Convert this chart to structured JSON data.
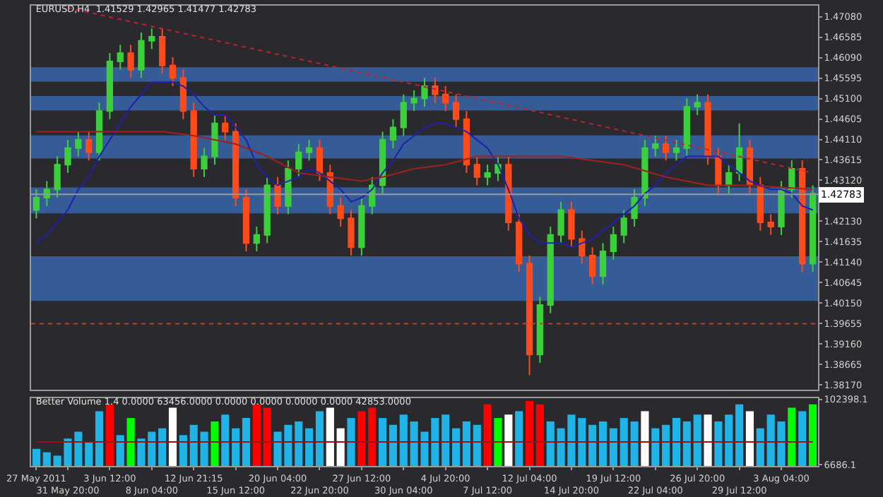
{
  "chart_data": [
    {
      "type": "candlestick",
      "title": "EURUSD,H4  1.41529 1.42965 1.41477 1.42783",
      "categories": [
        null,
        null,
        null,
        null,
        null,
        null,
        null,
        null,
        null,
        null,
        null,
        null,
        null,
        null,
        null,
        null,
        null,
        null,
        null,
        null,
        null,
        null,
        null,
        null,
        null,
        null,
        null,
        null,
        null,
        null,
        null,
        null,
        null,
        null,
        null,
        null,
        null,
        null,
        null,
        null,
        null,
        null,
        null,
        null,
        null,
        null,
        null,
        null,
        null,
        null,
        null,
        null,
        null,
        null,
        null,
        null,
        null,
        null,
        null,
        null,
        null,
        null,
        null,
        null,
        null,
        null,
        null,
        null,
        null,
        null,
        null,
        null,
        null,
        null,
        null
      ],
      "ohlc": [
        [
          1.424,
          1.429,
          1.422,
          1.427
        ],
        [
          1.427,
          1.431,
          1.425,
          1.429
        ],
        [
          1.429,
          1.437,
          1.427,
          1.435
        ],
        [
          1.435,
          1.441,
          1.433,
          1.439
        ],
        [
          1.439,
          1.443,
          1.437,
          1.441
        ],
        [
          1.441,
          1.443,
          1.436,
          1.438
        ],
        [
          1.438,
          1.45,
          1.436,
          1.448
        ],
        [
          1.448,
          1.462,
          1.446,
          1.46
        ],
        [
          1.46,
          1.464,
          1.458,
          1.462
        ],
        [
          1.462,
          1.464,
          1.456,
          1.458
        ],
        [
          1.458,
          1.467,
          1.456,
          1.465
        ],
        [
          1.465,
          1.468,
          1.463,
          1.466
        ],
        [
          1.466,
          1.468,
          1.457,
          1.459
        ],
        [
          1.459,
          1.461,
          1.454,
          1.456
        ],
        [
          1.456,
          1.458,
          1.446,
          1.448
        ],
        [
          1.448,
          1.45,
          1.432,
          1.434
        ],
        [
          1.434,
          1.439,
          1.432,
          1.437
        ],
        [
          1.437,
          1.447,
          1.435,
          1.445
        ],
        [
          1.445,
          1.447,
          1.441,
          1.443
        ],
        [
          1.443,
          1.445,
          1.425,
          1.427
        ],
        [
          1.427,
          1.429,
          1.414,
          1.416
        ],
        [
          1.416,
          1.42,
          1.414,
          1.418
        ],
        [
          1.418,
          1.432,
          1.416,
          1.43
        ],
        [
          1.43,
          1.432,
          1.423,
          1.425
        ],
        [
          1.425,
          1.436,
          1.423,
          1.434
        ],
        [
          1.434,
          1.44,
          1.432,
          1.438
        ],
        [
          1.438,
          1.441,
          1.436,
          1.439
        ],
        [
          1.439,
          1.441,
          1.431,
          1.433
        ],
        [
          1.433,
          1.435,
          1.423,
          1.425
        ],
        [
          1.425,
          1.427,
          1.42,
          1.422
        ],
        [
          1.422,
          1.424,
          1.413,
          1.415
        ],
        [
          1.415,
          1.427,
          1.413,
          1.425
        ],
        [
          1.425,
          1.432,
          1.423,
          1.43
        ],
        [
          1.43,
          1.443,
          1.428,
          1.441
        ],
        [
          1.441,
          1.446,
          1.439,
          1.444
        ],
        [
          1.444,
          1.452,
          1.442,
          1.45
        ],
        [
          1.45,
          1.453,
          1.448,
          1.451
        ],
        [
          1.451,
          1.456,
          1.449,
          1.454
        ],
        [
          1.454,
          1.456,
          1.45,
          1.452
        ],
        [
          1.452,
          1.454,
          1.448,
          1.45
        ],
        [
          1.45,
          1.452,
          1.444,
          1.446
        ],
        [
          1.446,
          1.448,
          1.433,
          1.435
        ],
        [
          1.435,
          1.437,
          1.43,
          1.432
        ],
        [
          1.432,
          1.435,
          1.43,
          1.433
        ],
        [
          1.433,
          1.437,
          1.431,
          1.435
        ],
        [
          1.435,
          1.437,
          1.419,
          1.421
        ],
        [
          1.421,
          1.423,
          1.409,
          1.411
        ],
        [
          1.411,
          1.413,
          1.384,
          1.389
        ],
        [
          1.389,
          1.403,
          1.387,
          1.401
        ],
        [
          1.401,
          1.42,
          1.399,
          1.418
        ],
        [
          1.418,
          1.426,
          1.416,
          1.424
        ],
        [
          1.424,
          1.426,
          1.415,
          1.417
        ],
        [
          1.417,
          1.419,
          1.411,
          1.413
        ],
        [
          1.413,
          1.415,
          1.406,
          1.408
        ],
        [
          1.408,
          1.416,
          1.406,
          1.414
        ],
        [
          1.414,
          1.42,
          1.412,
          1.418
        ],
        [
          1.418,
          1.424,
          1.416,
          1.422
        ],
        [
          1.422,
          1.429,
          1.42,
          1.427
        ],
        [
          1.427,
          1.441,
          1.425,
          1.439
        ],
        [
          1.439,
          1.442,
          1.437,
          1.44
        ],
        [
          1.44,
          1.442,
          1.436,
          1.438
        ],
        [
          1.438,
          1.441,
          1.436,
          1.439
        ],
        [
          1.439,
          1.451,
          1.437,
          1.449
        ],
        [
          1.449,
          1.452,
          1.447,
          1.45
        ],
        [
          1.45,
          1.452,
          1.435,
          1.437
        ],
        [
          1.437,
          1.439,
          1.428,
          1.43
        ],
        [
          1.43,
          1.435,
          1.428,
          1.433
        ],
        [
          1.433,
          1.445,
          1.431,
          1.439
        ],
        [
          1.439,
          1.441,
          1.428,
          1.43
        ],
        [
          1.43,
          1.432,
          1.419,
          1.421
        ],
        [
          1.421,
          1.423,
          1.418,
          1.42
        ],
        [
          1.42,
          1.431,
          1.418,
          1.429
        ],
        [
          1.429,
          1.436,
          1.427,
          1.434
        ],
        [
          1.434,
          1.436,
          1.409,
          1.411
        ],
        [
          1.411,
          1.43,
          1.409,
          1.428
        ]
      ],
      "series": [
        {
          "type": "line",
          "color": "#2020b0",
          "values": [
            1.416,
            1.418,
            1.421,
            1.424,
            1.429,
            1.432,
            1.437,
            1.441,
            1.445,
            1.449,
            1.452,
            1.455,
            1.455,
            1.455,
            1.454,
            1.452,
            1.449,
            1.447,
            1.447,
            1.444,
            1.441,
            1.435,
            1.432,
            1.43,
            1.431,
            1.432,
            1.434,
            1.433,
            1.431,
            1.429,
            1.426,
            1.427,
            1.429,
            1.433,
            1.436,
            1.44,
            1.442,
            1.444,
            1.445,
            1.445,
            1.444,
            1.443,
            1.441,
            1.439,
            1.435,
            1.429,
            1.422,
            1.418,
            1.416,
            1.416,
            1.416,
            1.415,
            1.416,
            1.417,
            1.419,
            1.421,
            1.423,
            1.425,
            1.428,
            1.43,
            1.433,
            1.435,
            1.437,
            1.437,
            1.437,
            1.437,
            1.435,
            1.433,
            1.431,
            1.43,
            1.429,
            1.429,
            1.428,
            1.425,
            1.424
          ]
        },
        {
          "type": "line",
          "color": "#a02020",
          "values": [
            1.443,
            null,
            null,
            null,
            null,
            null,
            null,
            null,
            null,
            null,
            null,
            null,
            1.443,
            null,
            null,
            1.442,
            null,
            null,
            null,
            1.44,
            null,
            null,
            1.437,
            null,
            null,
            1.433,
            null,
            null,
            1.432,
            null,
            null,
            1.431,
            null,
            1.432,
            null,
            null,
            1.434,
            null,
            null,
            1.435,
            null,
            null,
            1.437,
            null,
            1.437,
            null,
            null,
            null,
            null,
            null,
            1.437,
            null,
            null,
            null,
            null,
            null,
            1.435,
            null,
            null,
            null,
            1.432,
            null,
            null,
            null,
            1.43,
            null,
            null,
            null,
            1.43,
            null,
            null,
            null,
            null,
            null,
            1.429
          ]
        },
        {
          "type": "line",
          "color": "#c02030",
          "line_style": "dotted",
          "values": [
            null,
            null,
            null,
            1.473,
            null,
            null,
            null,
            null,
            null,
            null,
            null,
            null,
            null,
            null,
            null,
            null,
            null,
            null,
            null,
            null,
            null,
            null,
            null,
            null,
            null,
            null,
            null,
            null,
            null,
            null,
            null,
            null,
            null,
            null,
            null,
            null,
            null,
            null,
            null,
            null,
            null,
            null,
            null,
            null,
            null,
            null,
            null,
            null,
            null,
            null,
            null,
            null,
            null,
            null,
            null,
            null,
            null,
            null,
            null,
            null,
            null,
            null,
            null,
            null,
            null,
            null,
            null,
            null,
            null,
            null,
            null,
            null,
            null,
            null,
            1.433
          ]
        }
      ],
      "bands": [
        {
          "axis": "y",
          "from": 1.4551,
          "to": 1.4586,
          "color": "#3f7fe0"
        },
        {
          "axis": "y",
          "from": 1.4481,
          "to": 1.4516,
          "color": "#3f7fe0"
        },
        {
          "axis": "y",
          "from": 1.4365,
          "to": 1.4421,
          "color": "#3f7fe0"
        },
        {
          "axis": "y",
          "from": 1.4232,
          "to": 1.4295,
          "color": "#3f7fe0"
        },
        {
          "axis": "y",
          "from": 1.402,
          "to": 1.4128,
          "color": "#3f7fe0"
        }
      ],
      "ref_lines": [
        {
          "axis": "y",
          "value": 1.42783,
          "label": "1.42783",
          "color": "#9a9a9a"
        },
        {
          "axis": "y",
          "value": 1.3965,
          "color": "#c04020",
          "line_style": "dotted"
        }
      ],
      "ylim": [
        1.3805,
        1.4735
      ],
      "yticks": [
        {
          "value": 1.3817,
          "label": "1.38170"
        },
        {
          "value": 1.38665,
          "label": "1.38665"
        },
        {
          "value": 1.3916,
          "label": "1.39160"
        },
        {
          "value": 1.39655,
          "label": "1.39655"
        },
        {
          "value": 1.4015,
          "label": "1.40150"
        },
        {
          "value": 1.40645,
          "label": "1.40645"
        },
        {
          "value": 1.4114,
          "label": "1.41140"
        },
        {
          "value": 1.41635,
          "label": "1.41635"
        },
        {
          "value": 1.4213,
          "label": "1.42130"
        },
        {
          "value": 1.42625,
          "label": null
        },
        {
          "value": 1.4312,
          "label": "1.43120"
        },
        {
          "value": 1.43615,
          "label": "1.43615"
        },
        {
          "value": 1.4411,
          "label": "1.44110"
        },
        {
          "value": 1.44605,
          "label": "1.44605"
        },
        {
          "value": 1.451,
          "label": "1.45100"
        },
        {
          "value": 1.45595,
          "label": "1.45595"
        },
        {
          "value": 1.4609,
          "label": "1.46090"
        },
        {
          "value": 1.46585,
          "label": "1.46585"
        },
        {
          "value": 1.4708,
          "label": "1.47080"
        }
      ],
      "tick_labels": "y",
      "grid": false
    },
    {
      "type": "bar",
      "title": "Better Volume 1.4 0.0000 63456.0000 0.0000 0.0000 0.0000 0.0000 42853.0000",
      "categories": [
        "27 May 2011",
        null,
        null,
        "31 May 20:00",
        null,
        null,
        null,
        "3 Jun 12:00",
        null,
        null,
        null,
        "8 Jun 04:00",
        null,
        null,
        null,
        "12 Jun 21:15",
        null,
        null,
        null,
        "15 Jun 12:00",
        null,
        null,
        null,
        "20 Jun 04:00",
        null,
        null,
        null,
        "22 Jun 20:00",
        null,
        null,
        null,
        "27 Jun 12:00",
        null,
        null,
        null,
        "30 Jun 04:00",
        null,
        null,
        null,
        "4 Jul 20:00",
        null,
        null,
        null,
        "7 Jul 12:00",
        null,
        null,
        null,
        "12 Jul 04:00",
        null,
        null,
        null,
        "14 Jul 20:00",
        null,
        null,
        null,
        "19 Jul 12:00",
        null,
        null,
        null,
        "22 Jul 04:00",
        null,
        null,
        null,
        "26 Jul 20:00",
        null,
        null,
        null,
        "29 Jul 12:00",
        null,
        null,
        null,
        "3 Aug 04:00",
        null,
        null,
        null
      ],
      "values": [
        30000,
        25000,
        20000,
        45000,
        55000,
        40000,
        85000,
        95000,
        50000,
        75000,
        45000,
        55000,
        60000,
        90000,
        50000,
        65000,
        55000,
        70000,
        80000,
        60000,
        75000,
        95000,
        90000,
        55000,
        65000,
        70000,
        60000,
        85000,
        90000,
        60000,
        75000,
        85000,
        90000,
        75000,
        65000,
        80000,
        70000,
        55000,
        75000,
        80000,
        60000,
        70000,
        65000,
        95000,
        75000,
        80000,
        85000,
        100000,
        95000,
        70000,
        60000,
        80000,
        75000,
        65000,
        70000,
        60000,
        75000,
        70000,
        85000,
        60000,
        65000,
        75000,
        70000,
        80000,
        80000,
        70000,
        80000,
        95000,
        85000,
        60000,
        80000,
        70000,
        90000,
        85000,
        95000
      ],
      "colors": [
        "#1fb3e8",
        "#1fb3e8",
        "#1fb3e8",
        "#1fb3e8",
        "#1fb3e8",
        "#1fb3e8",
        "#1fb3e8",
        "#ff0000",
        "#1fb3e8",
        "#00ff00",
        "#1fb3e8",
        "#1fb3e8",
        "#1fb3e8",
        "#ffffff",
        "#1fb3e8",
        "#1fb3e8",
        "#1fb3e8",
        "#00ff00",
        "#1fb3e8",
        "#1fb3e8",
        "#1fb3e8",
        "#ff0000",
        "#ff0000",
        "#1fb3e8",
        "#1fb3e8",
        "#1fb3e8",
        "#1fb3e8",
        "#1fb3e8",
        "#ffffff",
        "#ffffff",
        "#1fb3e8",
        "#ff0000",
        "#ff0000",
        "#1fb3e8",
        "#1fb3e8",
        "#1fb3e8",
        "#1fb3e8",
        "#1fb3e8",
        "#1fb3e8",
        "#1fb3e8",
        "#1fb3e8",
        "#1fb3e8",
        "#1fb3e8",
        "#ff0000",
        "#00ff00",
        "#ffffff",
        "#1fb3e8",
        "#ff0000",
        "#ff0000",
        "#1fb3e8",
        "#1fb3e8",
        "#1fb3e8",
        "#1fb3e8",
        "#1fb3e8",
        "#1fb3e8",
        "#1fb3e8",
        "#1fb3e8",
        "#1fb3e8",
        "#ffffff",
        "#1fb3e8",
        "#1fb3e8",
        "#1fb3e8",
        "#1fb3e8",
        "#1fb3e8",
        "#ffffff",
        "#1fb3e8",
        "#1fb3e8",
        "#1fb3e8",
        "#ffffff",
        "#1fb3e8",
        "#1fb3e8",
        "#1fb3e8",
        "#00ff00",
        "#1fb3e8",
        "#00ff00"
      ],
      "series": [
        {
          "type": "line",
          "color": "#9a1010",
          "values": [
            40000,
            40000,
            40000,
            40000,
            40000,
            40000,
            40000,
            40000,
            40000,
            40000,
            40000,
            40000,
            40000,
            40000,
            40000,
            40000,
            40000,
            40000,
            40000,
            40000,
            40000,
            40000,
            40000,
            40000,
            40000,
            40000,
            40000,
            40000,
            40000,
            40000,
            40000,
            40000,
            40000,
            40000,
            40000,
            40000,
            40000,
            40000,
            40000,
            40000,
            40000,
            40000,
            40000,
            40000,
            40000,
            40000,
            40000,
            40000,
            40000,
            40000,
            40000,
            40000,
            40000,
            40000,
            40000,
            40000,
            40000,
            40000,
            40000,
            40000,
            40000,
            40000,
            40000,
            40000,
            40000,
            40000,
            40000,
            40000,
            40000,
            40000,
            40000,
            40000,
            40000,
            40000,
            40000
          ]
        }
      ],
      "ylim": [
        5000,
        104000
      ],
      "yticks": [
        6686.1,
        102398.1
      ],
      "grid": false
    }
  ]
}
